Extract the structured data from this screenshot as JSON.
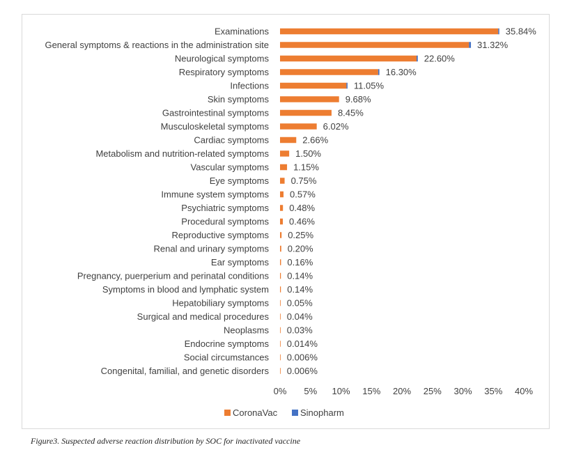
{
  "caption": "Figure3. Suspected adverse reaction distribution by SOC for inactivated vaccine",
  "colors": {
    "coronavac": "#ED7D31",
    "sinopharm": "#4472C4"
  },
  "chart_data": {
    "type": "bar",
    "orientation": "horizontal",
    "categories": [
      "Examinations",
      "General symptoms & reactions in the administration site",
      "Neurological symptoms",
      "Respiratory symptoms",
      "Infections",
      "Skin symptoms",
      "Gastrointestinal symptoms",
      "Musculoskeletal symptoms",
      "Cardiac symptoms",
      "Metabolism and nutrition-related symptoms",
      "Vascular symptoms",
      "Eye symptoms",
      "Immune system symptoms",
      "Psychiatric symptoms",
      "Procedural symptoms",
      "Reproductive symptoms",
      "Renal and urinary symptoms",
      "Ear symptoms",
      "Pregnancy, puerperium and perinatal conditions",
      "Symptoms in blood and lymphatic system",
      "Hepatobiliary symptoms",
      "Surgical and medical procedures",
      "Neoplasms",
      "Endocrine symptoms",
      "Social circumstances",
      "Congenital, familial, and genetic disorders"
    ],
    "value_labels": [
      "35.84%",
      "31.32%",
      "22.60%",
      "16.30%",
      "11.05%",
      "9.68%",
      "8.45%",
      "6.02%",
      "2.66%",
      "1.50%",
      "1.15%",
      "0.75%",
      "0.57%",
      "0.48%",
      "0.46%",
      "0.25%",
      "0.20%",
      "0.16%",
      "0.14%",
      "0.14%",
      "0.05%",
      "0.04%",
      "0.03%",
      "0.014%",
      "0.006%",
      "0.006%"
    ],
    "series": [
      {
        "name": "CoronaVac",
        "values": [
          35.8,
          31.0,
          22.4,
          16.1,
          10.9,
          9.68,
          8.45,
          6.02,
          2.66,
          1.5,
          1.15,
          0.75,
          0.57,
          0.48,
          0.46,
          0.25,
          0.2,
          0.16,
          0.14,
          0.14,
          0.05,
          0.04,
          0.03,
          0.014,
          0.006,
          0.006
        ]
      },
      {
        "name": "Sinopharm",
        "values": [
          0.04,
          0.32,
          0.2,
          0.2,
          0.15,
          0,
          0,
          0,
          0,
          0,
          0,
          0,
          0,
          0,
          0,
          0,
          0,
          0,
          0,
          0,
          0,
          0,
          0,
          0,
          0,
          0
        ]
      }
    ],
    "stacked": true,
    "x_ticks": [
      "0%",
      "5%",
      "10%",
      "15%",
      "20%",
      "25%",
      "30%",
      "35%",
      "40%"
    ],
    "xlim": [
      0,
      40
    ],
    "grid": false,
    "legend_position": "bottom"
  }
}
